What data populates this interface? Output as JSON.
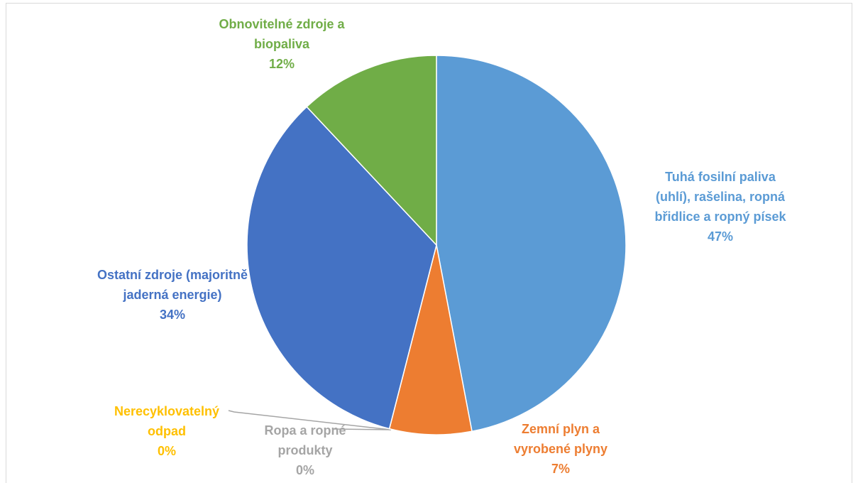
{
  "chart_data": {
    "type": "pie",
    "categories": [
      "Tuhá fosilní paliva (uhlí), rašelina, ropná břidlice a ropný písek",
      "Zemní plyn a vyrobené plyny",
      "Ropa a ropné produkty",
      "Nerecyklovatelný odpad",
      "Ostatní zdroje (majoritně jaderná energie)",
      "Obnovitelné zdroje a biopaliva"
    ],
    "values": [
      47,
      7,
      0,
      0,
      34,
      12
    ],
    "value_labels": [
      "47%",
      "7%",
      "0%",
      "0%",
      "34%",
      "12%"
    ],
    "colors": [
      "#5b9bd5",
      "#ed7d31",
      "#a5a5a5",
      "#ffc000",
      "#4472c4",
      "#70ad47"
    ]
  }
}
